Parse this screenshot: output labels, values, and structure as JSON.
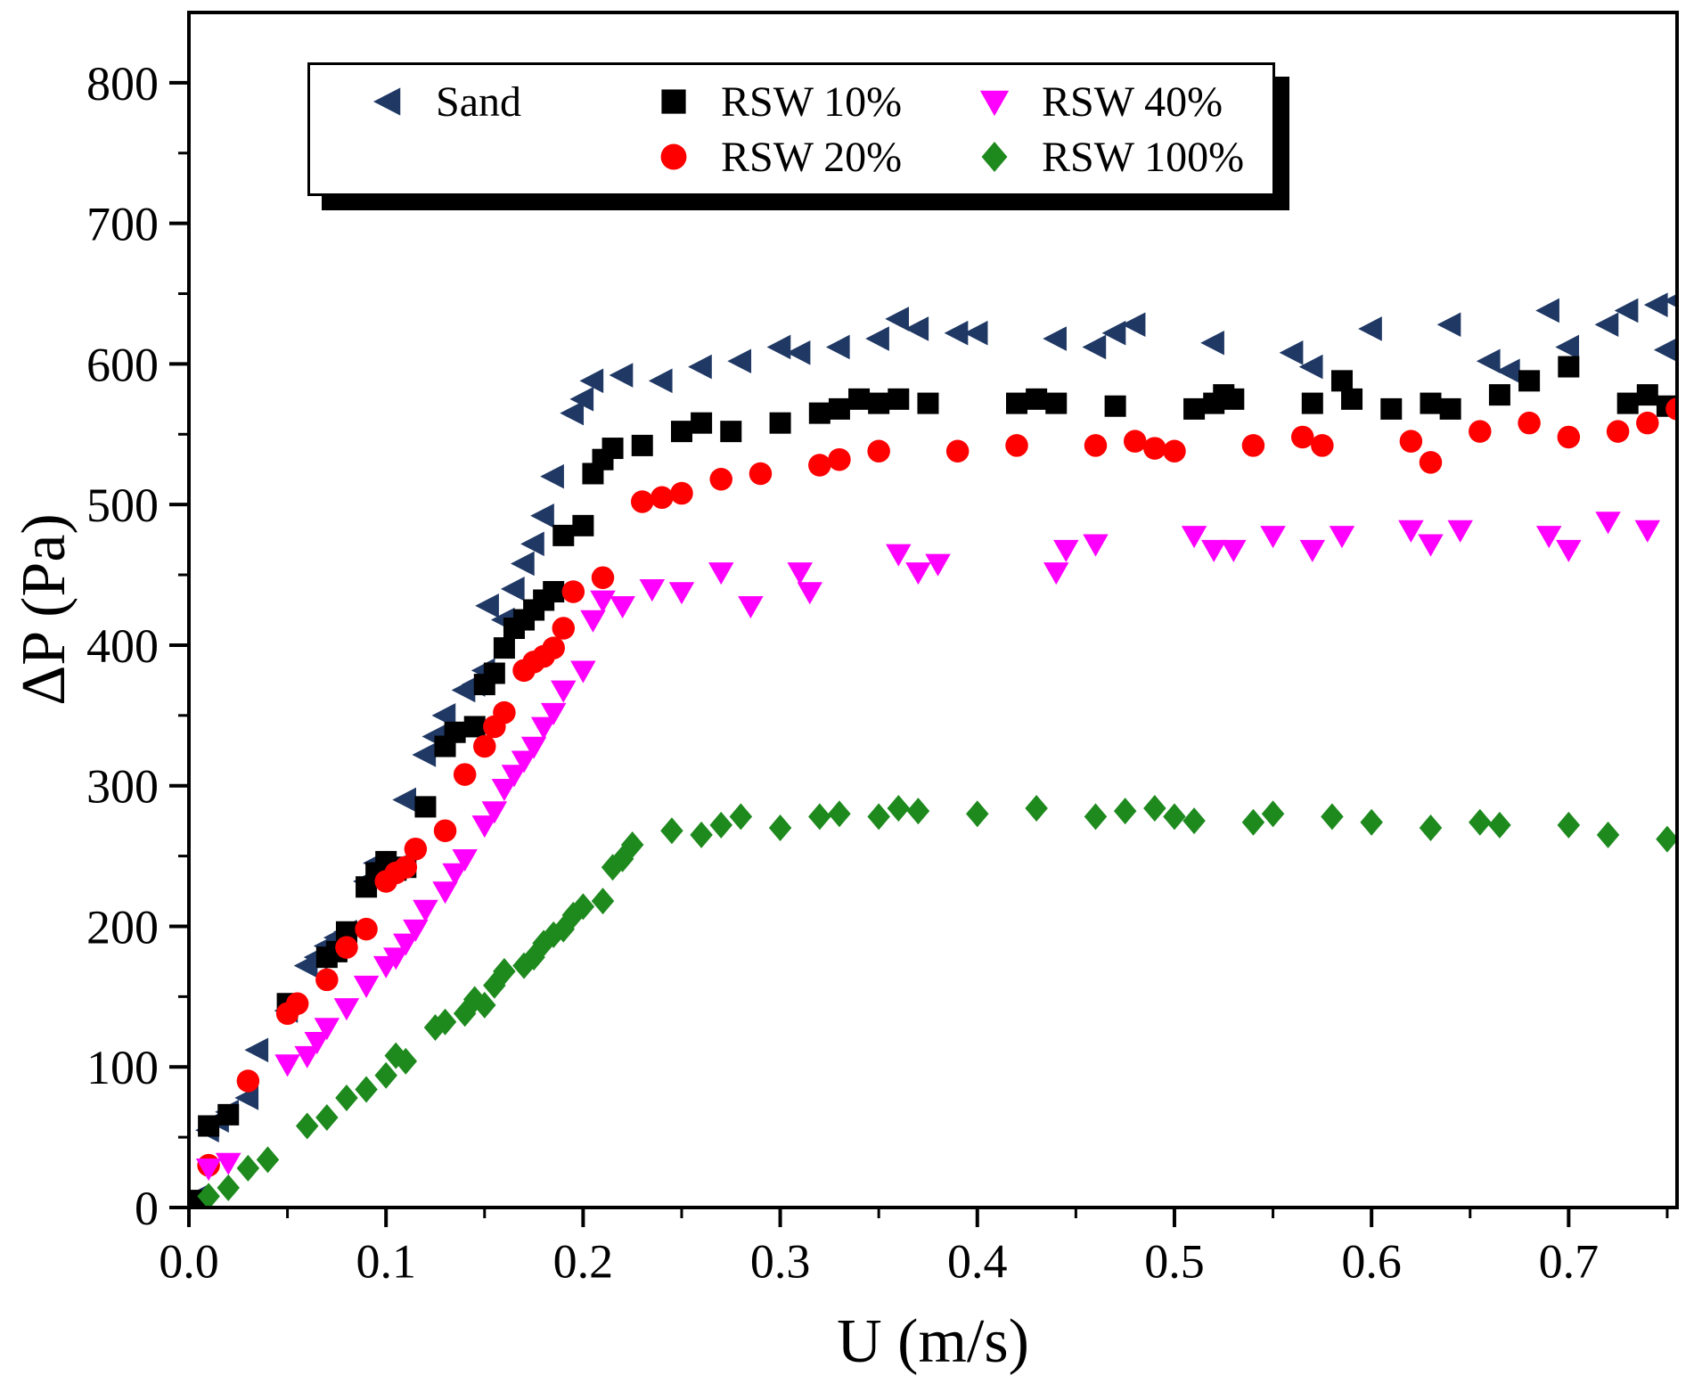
{
  "chart_data": {
    "type": "scatter",
    "title": "",
    "xlabel": "U (m/s)",
    "ylabel": "ΔP (Pa)",
    "xlim": [
      0,
      0.755
    ],
    "ylim": [
      0,
      850
    ],
    "grid": false,
    "legend_position": "top-center",
    "xtick_values": [
      0.0,
      0.1,
      0.2,
      0.3,
      0.4,
      0.5,
      0.6,
      0.7
    ],
    "xtick_labels": [
      "0.0",
      "0.1",
      "0.2",
      "0.3",
      "0.4",
      "0.5",
      "0.6",
      "0.7"
    ],
    "x_minor_step": 0.05,
    "ytick_values": [
      0,
      100,
      200,
      300,
      400,
      500,
      600,
      700,
      800
    ],
    "ytick_labels": [
      "0",
      "100",
      "200",
      "300",
      "400",
      "500",
      "600",
      "700",
      "800"
    ],
    "y_minor_step": 50,
    "legend_grid": [
      [
        0,
        1,
        3
      ],
      [
        -1,
        2,
        4
      ]
    ],
    "series": [
      {
        "name": "Sand",
        "marker": "triangle-left",
        "color": "#1f3864",
        "points": [
          [
            0.005,
            8
          ],
          [
            0.01,
            55
          ],
          [
            0.015,
            62
          ],
          [
            0.02,
            68
          ],
          [
            0.03,
            78
          ],
          [
            0.035,
            112
          ],
          [
            0.05,
            140
          ],
          [
            0.06,
            172
          ],
          [
            0.065,
            178
          ],
          [
            0.07,
            186
          ],
          [
            0.075,
            192
          ],
          [
            0.08,
            196
          ],
          [
            0.09,
            232
          ],
          [
            0.095,
            245
          ],
          [
            0.1,
            238
          ],
          [
            0.105,
            242
          ],
          [
            0.11,
            290
          ],
          [
            0.12,
            322
          ],
          [
            0.125,
            335
          ],
          [
            0.13,
            350
          ],
          [
            0.14,
            368
          ],
          [
            0.145,
            372
          ],
          [
            0.15,
            382
          ],
          [
            0.152,
            428
          ],
          [
            0.16,
            418
          ],
          [
            0.165,
            440
          ],
          [
            0.17,
            458
          ],
          [
            0.175,
            472
          ],
          [
            0.18,
            492
          ],
          [
            0.185,
            520
          ],
          [
            0.195,
            565
          ],
          [
            0.2,
            575
          ],
          [
            0.205,
            588
          ],
          [
            0.22,
            592
          ],
          [
            0.24,
            588
          ],
          [
            0.26,
            598
          ],
          [
            0.28,
            602
          ],
          [
            0.3,
            612
          ],
          [
            0.31,
            608
          ],
          [
            0.33,
            612
          ],
          [
            0.35,
            618
          ],
          [
            0.36,
            632
          ],
          [
            0.37,
            625
          ],
          [
            0.39,
            622
          ],
          [
            0.4,
            622
          ],
          [
            0.44,
            618
          ],
          [
            0.46,
            612
          ],
          [
            0.47,
            622
          ],
          [
            0.48,
            628
          ],
          [
            0.52,
            615
          ],
          [
            0.56,
            608
          ],
          [
            0.57,
            598
          ],
          [
            0.6,
            625
          ],
          [
            0.64,
            628
          ],
          [
            0.66,
            602
          ],
          [
            0.67,
            595
          ],
          [
            0.69,
            638
          ],
          [
            0.7,
            612
          ],
          [
            0.72,
            628
          ],
          [
            0.73,
            638
          ],
          [
            0.745,
            642
          ],
          [
            0.75,
            610
          ],
          [
            0.755,
            645
          ]
        ]
      },
      {
        "name": "RSW 10%",
        "marker": "square",
        "color": "#000000",
        "points": [
          [
            0.005,
            5
          ],
          [
            0.01,
            58
          ],
          [
            0.02,
            66
          ],
          [
            0.05,
            145
          ],
          [
            0.07,
            178
          ],
          [
            0.075,
            182
          ],
          [
            0.08,
            196
          ],
          [
            0.09,
            228
          ],
          [
            0.095,
            238
          ],
          [
            0.1,
            246
          ],
          [
            0.105,
            240
          ],
          [
            0.11,
            242
          ],
          [
            0.12,
            285
          ],
          [
            0.13,
            328
          ],
          [
            0.135,
            338
          ],
          [
            0.145,
            342
          ],
          [
            0.15,
            372
          ],
          [
            0.155,
            380
          ],
          [
            0.16,
            398
          ],
          [
            0.165,
            412
          ],
          [
            0.17,
            418
          ],
          [
            0.175,
            425
          ],
          [
            0.18,
            432
          ],
          [
            0.185,
            438
          ],
          [
            0.19,
            478
          ],
          [
            0.2,
            485
          ],
          [
            0.205,
            522
          ],
          [
            0.21,
            532
          ],
          [
            0.215,
            540
          ],
          [
            0.23,
            542
          ],
          [
            0.25,
            552
          ],
          [
            0.26,
            558
          ],
          [
            0.275,
            552
          ],
          [
            0.3,
            558
          ],
          [
            0.32,
            565
          ],
          [
            0.33,
            568
          ],
          [
            0.34,
            575
          ],
          [
            0.35,
            572
          ],
          [
            0.36,
            575
          ],
          [
            0.375,
            572
          ],
          [
            0.42,
            572
          ],
          [
            0.43,
            575
          ],
          [
            0.44,
            572
          ],
          [
            0.47,
            570
          ],
          [
            0.51,
            568
          ],
          [
            0.52,
            572
          ],
          [
            0.525,
            578
          ],
          [
            0.53,
            575
          ],
          [
            0.57,
            572
          ],
          [
            0.585,
            588
          ],
          [
            0.59,
            575
          ],
          [
            0.61,
            568
          ],
          [
            0.63,
            572
          ],
          [
            0.64,
            568
          ],
          [
            0.665,
            578
          ],
          [
            0.68,
            588
          ],
          [
            0.7,
            598
          ],
          [
            0.73,
            572
          ],
          [
            0.74,
            578
          ],
          [
            0.75,
            570
          ]
        ]
      },
      {
        "name": "RSW 20%",
        "marker": "circle",
        "color": "#fe0000",
        "points": [
          [
            0.01,
            30
          ],
          [
            0.03,
            90
          ],
          [
            0.05,
            138
          ],
          [
            0.055,
            145
          ],
          [
            0.07,
            162
          ],
          [
            0.08,
            185
          ],
          [
            0.09,
            198
          ],
          [
            0.1,
            232
          ],
          [
            0.105,
            238
          ],
          [
            0.11,
            242
          ],
          [
            0.115,
            255
          ],
          [
            0.13,
            268
          ],
          [
            0.14,
            308
          ],
          [
            0.15,
            328
          ],
          [
            0.155,
            342
          ],
          [
            0.16,
            352
          ],
          [
            0.17,
            382
          ],
          [
            0.175,
            388
          ],
          [
            0.18,
            392
          ],
          [
            0.185,
            398
          ],
          [
            0.19,
            412
          ],
          [
            0.195,
            438
          ],
          [
            0.21,
            448
          ],
          [
            0.23,
            502
          ],
          [
            0.24,
            505
          ],
          [
            0.25,
            508
          ],
          [
            0.27,
            518
          ],
          [
            0.29,
            522
          ],
          [
            0.32,
            528
          ],
          [
            0.33,
            532
          ],
          [
            0.35,
            538
          ],
          [
            0.39,
            538
          ],
          [
            0.42,
            542
          ],
          [
            0.46,
            542
          ],
          [
            0.48,
            545
          ],
          [
            0.49,
            540
          ],
          [
            0.5,
            538
          ],
          [
            0.54,
            542
          ],
          [
            0.565,
            548
          ],
          [
            0.575,
            542
          ],
          [
            0.62,
            545
          ],
          [
            0.63,
            530
          ],
          [
            0.655,
            552
          ],
          [
            0.68,
            558
          ],
          [
            0.7,
            548
          ],
          [
            0.725,
            552
          ],
          [
            0.74,
            558
          ],
          [
            0.755,
            568
          ]
        ]
      },
      {
        "name": "RSW 40%",
        "marker": "triangle-down",
        "color": "#ff00ff",
        "points": [
          [
            0.01,
            28
          ],
          [
            0.02,
            32
          ],
          [
            0.05,
            102
          ],
          [
            0.06,
            108
          ],
          [
            0.065,
            118
          ],
          [
            0.07,
            128
          ],
          [
            0.08,
            142
          ],
          [
            0.09,
            158
          ],
          [
            0.1,
            172
          ],
          [
            0.105,
            178
          ],
          [
            0.11,
            188
          ],
          [
            0.115,
            198
          ],
          [
            0.12,
            212
          ],
          [
            0.13,
            225
          ],
          [
            0.135,
            238
          ],
          [
            0.14,
            248
          ],
          [
            0.15,
            272
          ],
          [
            0.155,
            282
          ],
          [
            0.16,
            298
          ],
          [
            0.165,
            308
          ],
          [
            0.17,
            318
          ],
          [
            0.175,
            328
          ],
          [
            0.18,
            342
          ],
          [
            0.185,
            352
          ],
          [
            0.19,
            368
          ],
          [
            0.2,
            382
          ],
          [
            0.205,
            418
          ],
          [
            0.21,
            432
          ],
          [
            0.22,
            428
          ],
          [
            0.235,
            440
          ],
          [
            0.25,
            438
          ],
          [
            0.27,
            452
          ],
          [
            0.285,
            428
          ],
          [
            0.31,
            452
          ],
          [
            0.315,
            438
          ],
          [
            0.36,
            465
          ],
          [
            0.37,
            452
          ],
          [
            0.38,
            458
          ],
          [
            0.44,
            452
          ],
          [
            0.445,
            468
          ],
          [
            0.46,
            472
          ],
          [
            0.51,
            478
          ],
          [
            0.52,
            468
          ],
          [
            0.53,
            468
          ],
          [
            0.55,
            478
          ],
          [
            0.57,
            468
          ],
          [
            0.585,
            478
          ],
          [
            0.62,
            482
          ],
          [
            0.63,
            472
          ],
          [
            0.645,
            482
          ],
          [
            0.69,
            478
          ],
          [
            0.7,
            468
          ],
          [
            0.72,
            488
          ],
          [
            0.74,
            482
          ]
        ]
      },
      {
        "name": "RSW 100%",
        "marker": "diamond",
        "color": "#1e8a1e",
        "points": [
          [
            0.01,
            8
          ],
          [
            0.02,
            14
          ],
          [
            0.03,
            28
          ],
          [
            0.04,
            34
          ],
          [
            0.06,
            58
          ],
          [
            0.07,
            64
          ],
          [
            0.08,
            78
          ],
          [
            0.09,
            84
          ],
          [
            0.1,
            94
          ],
          [
            0.105,
            108
          ],
          [
            0.11,
            104
          ],
          [
            0.125,
            128
          ],
          [
            0.13,
            132
          ],
          [
            0.14,
            138
          ],
          [
            0.145,
            148
          ],
          [
            0.15,
            144
          ],
          [
            0.155,
            158
          ],
          [
            0.16,
            168
          ],
          [
            0.17,
            172
          ],
          [
            0.175,
            178
          ],
          [
            0.18,
            188
          ],
          [
            0.185,
            194
          ],
          [
            0.19,
            198
          ],
          [
            0.195,
            208
          ],
          [
            0.2,
            214
          ],
          [
            0.21,
            218
          ],
          [
            0.215,
            242
          ],
          [
            0.22,
            248
          ],
          [
            0.225,
            258
          ],
          [
            0.245,
            268
          ],
          [
            0.26,
            265
          ],
          [
            0.27,
            272
          ],
          [
            0.28,
            278
          ],
          [
            0.3,
            270
          ],
          [
            0.32,
            278
          ],
          [
            0.33,
            280
          ],
          [
            0.35,
            278
          ],
          [
            0.36,
            284
          ],
          [
            0.37,
            282
          ],
          [
            0.4,
            280
          ],
          [
            0.43,
            284
          ],
          [
            0.46,
            278
          ],
          [
            0.475,
            282
          ],
          [
            0.49,
            284
          ],
          [
            0.5,
            278
          ],
          [
            0.51,
            275
          ],
          [
            0.54,
            274
          ],
          [
            0.55,
            280
          ],
          [
            0.58,
            278
          ],
          [
            0.6,
            274
          ],
          [
            0.63,
            270
          ],
          [
            0.655,
            274
          ],
          [
            0.665,
            272
          ],
          [
            0.7,
            272
          ],
          [
            0.72,
            265
          ],
          [
            0.75,
            262
          ]
        ]
      }
    ]
  }
}
